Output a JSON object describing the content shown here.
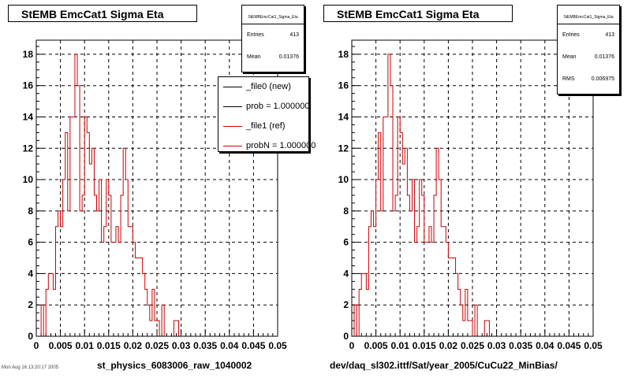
{
  "chart_data": [
    {
      "type": "histogram",
      "title": "StEMB EmcCat1 Sigma Eta",
      "xlabel": "st_physics_6083006_raw_1040002",
      "xlim": [
        0,
        0.05
      ],
      "ylim": [
        0,
        18.9
      ],
      "x_ticks": [
        "0",
        "0.005",
        "0.01",
        "0.015",
        "0.02",
        "0.025",
        "0.03",
        "0.035",
        "0.04",
        "0.045",
        "0.05"
      ],
      "y_ticks": [
        "0",
        "2",
        "4",
        "6",
        "8",
        "10",
        "12",
        "14",
        "16",
        "18"
      ],
      "bin_width": 0.0005,
      "grid": true,
      "line_color": "#cc0000",
      "series": [
        {
          "name": "_file1 (ref)",
          "color": "#cc0000",
          "values": [
            0,
            0,
            2,
            0,
            3,
            4,
            4,
            3,
            7,
            8,
            7,
            10,
            13,
            8,
            14,
            14,
            18,
            16,
            8,
            9,
            14,
            13,
            11,
            12,
            9,
            8,
            10,
            6,
            7,
            10,
            9,
            6,
            6,
            7,
            6,
            9,
            12,
            10,
            7,
            7,
            6,
            5,
            5,
            5,
            4,
            3,
            2,
            1,
            3,
            1,
            1,
            0,
            2,
            0,
            0,
            0,
            0,
            1,
            1,
            0
          ]
        }
      ],
      "stats": {
        "name": "StEMBEmcCat1_Sigma_Eta",
        "entries_label": "Entries",
        "entries": "413",
        "mean_label": "Mean",
        "mean": "0.01376"
      },
      "legend": {
        "placement": "top-right",
        "entries": [
          {
            "label": "_file0 (new)",
            "color": "#000000"
          },
          {
            "label": "prob = 1.000000",
            "color": "#000000"
          },
          {
            "label": "_file1 (ref)",
            "color": "#cc0000"
          },
          {
            "label": "probN = 1.000000",
            "color": "#cc0000"
          }
        ]
      }
    },
    {
      "type": "histogram",
      "title": "StEMB EmcCat1 Sigma Eta",
      "xlabel": "dev/daq_sl302.ittf/Sat/year_2005/CuCu22_MinBias/",
      "xlim": [
        0,
        0.05
      ],
      "ylim": [
        0,
        18.9
      ],
      "x_ticks": [
        "0",
        "0.005",
        "0.01",
        "0.015",
        "0.02",
        "0.025",
        "0.03",
        "0.035",
        "0.04",
        "0.045",
        "0.05"
      ],
      "y_ticks": [
        "0",
        "2",
        "4",
        "6",
        "8",
        "10",
        "12",
        "14",
        "16",
        "18"
      ],
      "bin_width": 0.0005,
      "grid": true,
      "line_color": "#cc0000",
      "series": [
        {
          "name": "",
          "color": "#cc0000",
          "values": [
            0,
            2,
            0,
            3,
            4,
            4,
            3,
            7,
            8,
            7,
            10,
            13,
            8,
            14,
            14,
            18,
            16,
            8,
            9,
            14,
            13,
            11,
            12,
            9,
            8,
            10,
            6,
            7,
            10,
            9,
            6,
            6,
            7,
            6,
            9,
            12,
            10,
            7,
            7,
            6,
            5,
            5,
            5,
            4,
            3,
            2,
            1,
            3,
            1,
            1,
            0,
            2,
            0,
            0,
            0,
            1,
            1,
            0,
            0,
            0
          ]
        }
      ],
      "stats": {
        "name": "StEMBEmcCat1_Sigma_Eta",
        "entries_label": "Entries",
        "entries": "413",
        "mean_label": "Mean",
        "mean": "0.01376",
        "rms_label": "RMS",
        "rms": "0.006975"
      }
    }
  ],
  "footer_stamp": "Mon Aug 16 13:20:17 2005"
}
